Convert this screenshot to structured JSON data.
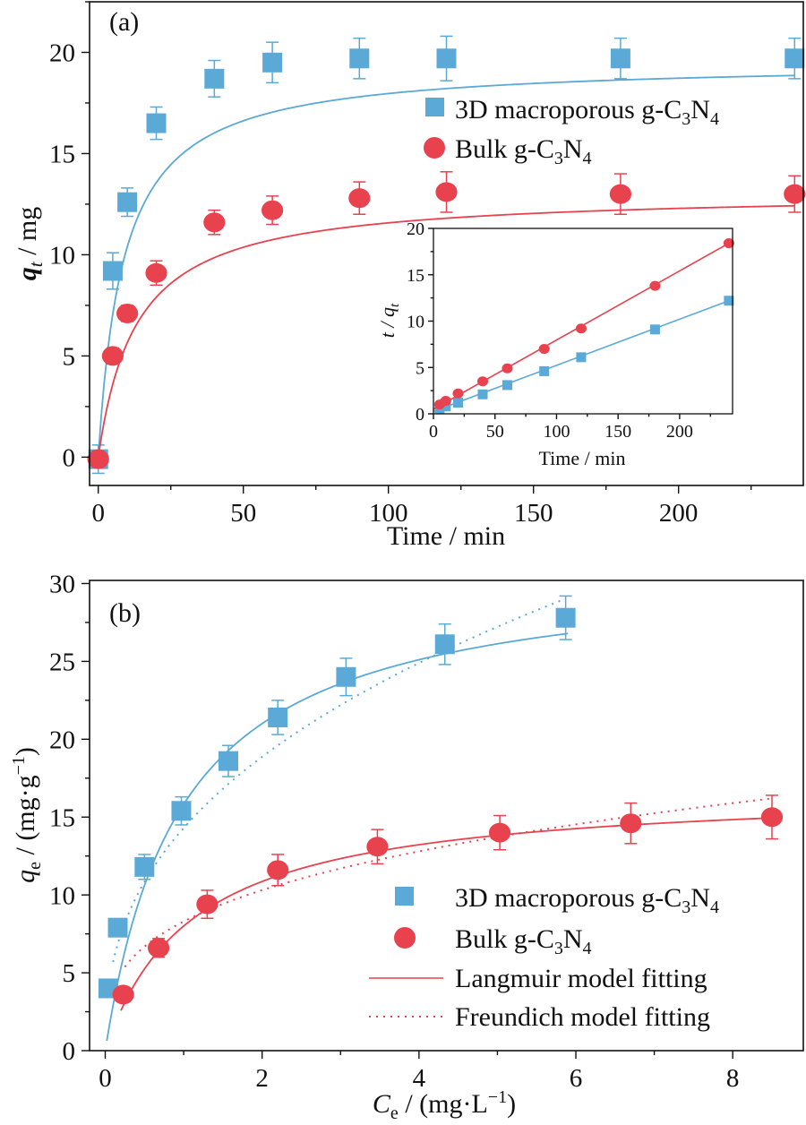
{
  "colors": {
    "blue": "#5aa9d6",
    "red": "#e8424f"
  },
  "chart_data": [
    {
      "panel_label": "(a)",
      "type": "scatter",
      "xlabel": "Time / min",
      "ylabel_var": "q",
      "ylabel_sub": "t",
      "ylabel_unit": " / mg",
      "xlim": [
        -3,
        243
      ],
      "ylim": [
        -1.4,
        22.5
      ],
      "xticks": [
        0,
        50,
        100,
        150,
        200
      ],
      "yticks": [
        0,
        5,
        10,
        15,
        20
      ],
      "legend_position": "right",
      "series": [
        {
          "id": "blue",
          "marker": "square",
          "name_base": "3D macroporous g-C",
          "sub1": "3",
          "name_mid": "N",
          "sub2": "4",
          "x": [
            0,
            5,
            10,
            20,
            40,
            60,
            90,
            120,
            180,
            240
          ],
          "y": [
            -0.1,
            9.2,
            12.6,
            16.5,
            18.7,
            19.5,
            19.7,
            19.7,
            19.7,
            19.7
          ],
          "err": [
            0.7,
            0.9,
            0.7,
            0.8,
            0.9,
            1.0,
            1.0,
            1.1,
            1.0,
            1.0
          ],
          "fit": {
            "qe": 19.55,
            "k": 0.0058
          }
        },
        {
          "id": "red",
          "marker": "circle",
          "name_base": "Bulk g-C",
          "sub1": "3",
          "name_mid": "N",
          "sub2": "4",
          "x": [
            0,
            5,
            10,
            20,
            40,
            60,
            90,
            120,
            180,
            240
          ],
          "y": [
            -0.1,
            5.0,
            7.1,
            9.1,
            11.6,
            12.2,
            12.8,
            13.1,
            13.0,
            13.0
          ],
          "err": [
            0.4,
            0.4,
            0.4,
            0.6,
            0.6,
            0.7,
            0.8,
            1.0,
            1.0,
            0.9
          ],
          "fit": {
            "qe": 13.1,
            "k": 0.0058
          }
        }
      ]
    },
    {
      "panel_label": "inset",
      "type": "scatter",
      "xlabel": "Time / min",
      "ylabel_var": "t / q",
      "ylabel_sub": "t",
      "xlim": [
        0,
        243
      ],
      "ylim": [
        0,
        20
      ],
      "xticks": [
        0,
        50,
        100,
        150,
        200
      ],
      "yticks": [
        0,
        5,
        10,
        15,
        20
      ],
      "series": [
        {
          "id": "blue",
          "marker": "square",
          "x": [
            5,
            10,
            20,
            40,
            60,
            90,
            120,
            180,
            240
          ],
          "y": [
            0.5,
            0.8,
            1.2,
            2.1,
            3.1,
            4.6,
            6.1,
            9.1,
            12.2
          ],
          "line": [
            [
              0,
              0.25
            ],
            [
              240,
              12.2
            ]
          ]
        },
        {
          "id": "red",
          "marker": "circle",
          "x": [
            5,
            10,
            20,
            40,
            60,
            90,
            120,
            180,
            240
          ],
          "y": [
            1.0,
            1.4,
            2.2,
            3.5,
            4.9,
            7.0,
            9.2,
            13.8,
            18.4
          ],
          "line": [
            [
              0,
              0.5
            ],
            [
              240,
              18.4
            ]
          ]
        }
      ]
    },
    {
      "panel_label": "(b)",
      "type": "scatter",
      "xlabel_var": "C",
      "xlabel_sub": "e",
      "xlabel_unit": " / (mg·L",
      "xlabel_sup": "−1",
      "xlabel_end": ")",
      "ylabel_var": "q",
      "ylabel_sub": "e",
      "ylabel_unit": " / (mg·g",
      "ylabel_sup": "−1",
      "ylabel_end": ")",
      "xlim": [
        -0.2,
        8.9
      ],
      "ylim": [
        0,
        30.2
      ],
      "xticks": [
        0,
        2,
        4,
        6,
        8
      ],
      "yticks": [
        0,
        5,
        10,
        15,
        20,
        25,
        30
      ],
      "legend_position": "bottom-right",
      "series": [
        {
          "id": "blue",
          "marker": "square",
          "name_base": "3D macroporous g-C",
          "sub1": "3",
          "name_mid": "N",
          "sub2": "4",
          "x": [
            0.04,
            0.16,
            0.5,
            0.97,
            1.57,
            2.2,
            3.07,
            4.33,
            5.87
          ],
          "y": [
            4.0,
            7.9,
            11.8,
            15.4,
            18.6,
            21.4,
            24.0,
            26.1,
            27.8
          ],
          "err": [
            0.4,
            0.5,
            0.8,
            0.9,
            1.0,
            1.1,
            1.2,
            1.3,
            1.4
          ],
          "langmuir": {
            "qm": 31.2,
            "KL": 1.03,
            "from": 0.02,
            "to": 5.9
          },
          "freundlich": {
            "KF": 14.3,
            "n": 2.5,
            "from": 0.1,
            "to": 5.87
          }
        },
        {
          "id": "red",
          "marker": "circle",
          "name_base": "Bulk g-C",
          "sub1": "3",
          "name_mid": "N",
          "sub2": "4",
          "x": [
            0.23,
            0.68,
            1.3,
            2.2,
            3.47,
            5.03,
            6.7,
            8.5
          ],
          "y": [
            3.6,
            6.6,
            9.4,
            11.6,
            13.1,
            14.0,
            14.6,
            15.0
          ],
          "err": [
            0.3,
            0.6,
            0.9,
            1.0,
            1.1,
            1.1,
            1.3,
            1.4
          ],
          "langmuir": {
            "qm": 16.9,
            "KL": 0.9,
            "from": 0.2,
            "to": 8.5
          },
          "freundlich": {
            "KF": 8.3,
            "n": 3.2,
            "from": 0.25,
            "to": 8.5
          }
        }
      ],
      "fit_legend": [
        "Langmuir model fitting",
        "Freundich model fitting"
      ]
    }
  ]
}
